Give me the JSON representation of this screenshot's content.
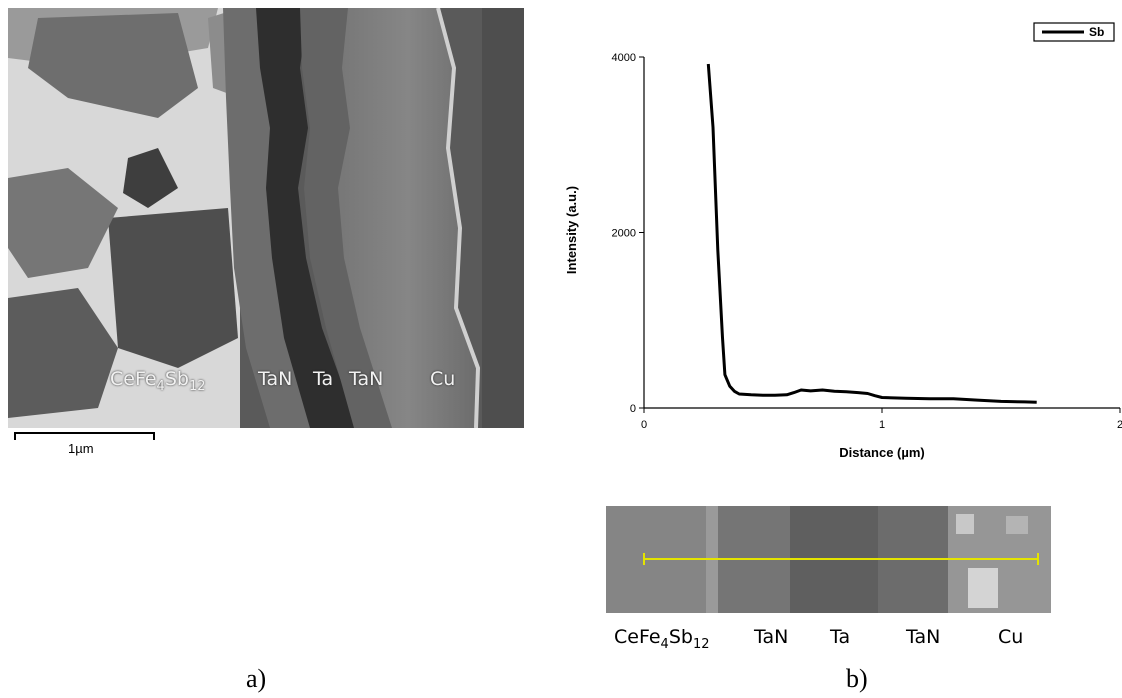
{
  "panel_a": {
    "caption": "a)",
    "scale_bar": "1µm",
    "labels": {
      "compound_main": "CeFe",
      "compound_sub1": "4",
      "compound_mid": "Sb",
      "compound_sub2": "12",
      "tan1": "TaN",
      "ta": "Ta",
      "tan2": "TaN",
      "cu": "Cu"
    }
  },
  "panel_b": {
    "caption": "b)",
    "strip_labels": {
      "compound_main": "CeFe",
      "compound_sub1": "4",
      "compound_mid": "Sb",
      "compound_sub2": "12",
      "tan1": "TaN",
      "ta": "Ta",
      "tan2": "TaN",
      "cu": "Cu"
    }
  },
  "chart_data": {
    "type": "line",
    "title": "",
    "xlabel": "Distance (µm)",
    "ylabel": "Intensity (a.u.)",
    "xlim": [
      0,
      2
    ],
    "ylim": [
      0,
      4000
    ],
    "xticks": [
      "0",
      "1",
      "2"
    ],
    "yticks": [
      "0",
      "2000",
      "4000"
    ],
    "legend_position": "top-right",
    "series": [
      {
        "name": "Sb",
        "color": "#000000",
        "points": [
          [
            0.27,
            3920
          ],
          [
            0.29,
            3200
          ],
          [
            0.31,
            1800
          ],
          [
            0.33,
            800
          ],
          [
            0.34,
            380
          ],
          [
            0.36,
            250
          ],
          [
            0.38,
            190
          ],
          [
            0.4,
            160
          ],
          [
            0.45,
            150
          ],
          [
            0.5,
            145
          ],
          [
            0.55,
            145
          ],
          [
            0.6,
            150
          ],
          [
            0.63,
            175
          ],
          [
            0.66,
            205
          ],
          [
            0.7,
            195
          ],
          [
            0.75,
            205
          ],
          [
            0.8,
            190
          ],
          [
            0.85,
            185
          ],
          [
            0.9,
            175
          ],
          [
            0.94,
            165
          ],
          [
            0.97,
            140
          ],
          [
            1.0,
            120
          ],
          [
            1.1,
            110
          ],
          [
            1.2,
            105
          ],
          [
            1.3,
            105
          ],
          [
            1.4,
            90
          ],
          [
            1.5,
            75
          ],
          [
            1.6,
            70
          ],
          [
            1.65,
            65
          ]
        ]
      }
    ]
  }
}
